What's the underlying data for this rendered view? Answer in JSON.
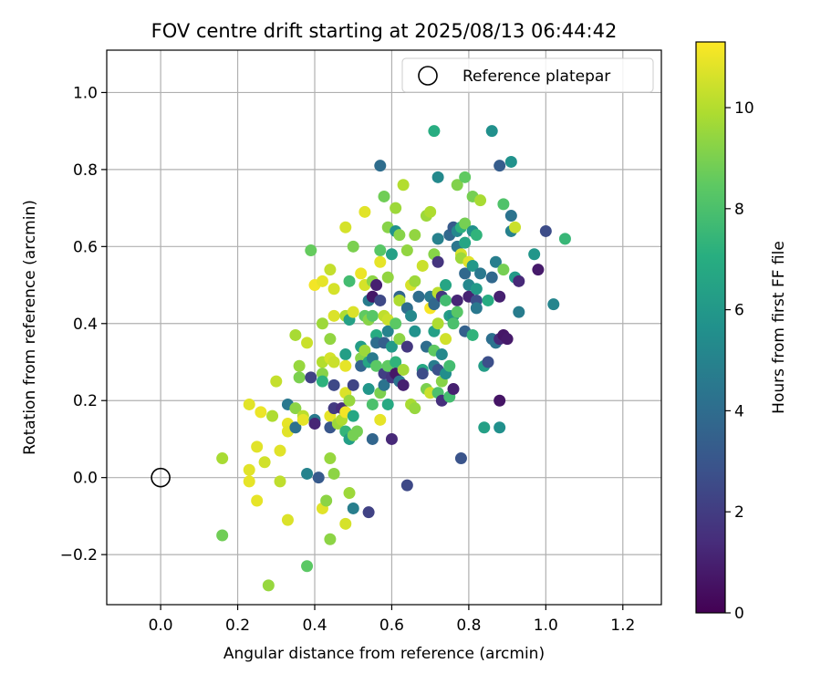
{
  "chart_data": {
    "type": "scatter",
    "title": "FOV centre drift starting at 2025/08/13 06:44:42",
    "xlabel": "Angular distance from reference (arcmin)",
    "ylabel": "Rotation from reference (arcmin)",
    "xlim": [
      -0.14,
      1.3
    ],
    "ylim": [
      -0.33,
      1.11
    ],
    "xticks": [
      0.0,
      0.2,
      0.4,
      0.6,
      0.8,
      1.0,
      1.2
    ],
    "xtick_labels": [
      "0.0",
      "0.2",
      "0.4",
      "0.6",
      "0.8",
      "1.0",
      "1.2"
    ],
    "yticks": [
      -0.2,
      0.0,
      0.2,
      0.4,
      0.6,
      0.8,
      1.0
    ],
    "ytick_labels": [
      "−0.2",
      "0.0",
      "0.2",
      "0.4",
      "0.6",
      "0.8",
      "1.0"
    ],
    "grid": true,
    "legend": {
      "position": "top-right",
      "entries": [
        "Reference platepar"
      ]
    },
    "reference_point": {
      "x": 0.0,
      "y": 0.0,
      "label": "Reference platepar"
    },
    "colorbar": {
      "label": "Hours from first FF file",
      "colormap": "viridis",
      "range": [
        0,
        11.3
      ],
      "ticks": [
        0,
        2,
        4,
        6,
        8,
        10
      ],
      "tick_labels": [
        "0",
        "2",
        "4",
        "6",
        "8",
        "10"
      ]
    },
    "points": [
      [
        0.16,
        0.05,
        9.8
      ],
      [
        0.16,
        -0.15,
        8.8
      ],
      [
        0.23,
        0.19,
        10.8
      ],
      [
        0.23,
        0.02,
        10.8
      ],
      [
        0.23,
        -0.01,
        10.9
      ],
      [
        0.25,
        0.08,
        10.8
      ],
      [
        0.25,
        -0.06,
        10.9
      ],
      [
        0.26,
        0.17,
        11.0
      ],
      [
        0.27,
        0.04,
        10.5
      ],
      [
        0.28,
        -0.28,
        9.5
      ],
      [
        0.29,
        0.16,
        9.9
      ],
      [
        0.3,
        0.25,
        10.3
      ],
      [
        0.31,
        0.07,
        10.8
      ],
      [
        0.31,
        -0.01,
        10.2
      ],
      [
        0.33,
        0.19,
        4.5
      ],
      [
        0.33,
        0.14,
        10.9
      ],
      [
        0.33,
        0.12,
        10.8
      ],
      [
        0.33,
        -0.11,
        10.7
      ],
      [
        0.35,
        0.37,
        9.8
      ],
      [
        0.35,
        0.18,
        9.3
      ],
      [
        0.35,
        0.13,
        4.2
      ],
      [
        0.36,
        0.29,
        9.5
      ],
      [
        0.36,
        0.26,
        9.0
      ],
      [
        0.37,
        0.16,
        10.1
      ],
      [
        0.37,
        0.15,
        10.9
      ],
      [
        0.38,
        0.35,
        10.4
      ],
      [
        0.38,
        0.01,
        5.0
      ],
      [
        0.38,
        -0.23,
        8.4
      ],
      [
        0.39,
        0.59,
        8.6
      ],
      [
        0.39,
        0.26,
        2.2
      ],
      [
        0.4,
        0.5,
        11.1
      ],
      [
        0.4,
        0.15,
        4.6
      ],
      [
        0.4,
        0.14,
        1.2
      ],
      [
        0.41,
        0.0,
        3.2
      ],
      [
        0.42,
        0.51,
        10.9
      ],
      [
        0.42,
        0.4,
        9.6
      ],
      [
        0.42,
        0.3,
        10.0
      ],
      [
        0.42,
        0.27,
        9.2
      ],
      [
        0.42,
        0.25,
        7.2
      ],
      [
        0.42,
        -0.08,
        10.8
      ],
      [
        0.43,
        -0.06,
        9.3
      ],
      [
        0.44,
        0.54,
        10.3
      ],
      [
        0.44,
        0.36,
        9.4
      ],
      [
        0.44,
        0.31,
        10.6
      ],
      [
        0.44,
        0.16,
        10.9
      ],
      [
        0.44,
        0.13,
        3.0
      ],
      [
        0.44,
        0.05,
        9.5
      ],
      [
        0.44,
        -0.16,
        9.3
      ],
      [
        0.45,
        0.49,
        10.6
      ],
      [
        0.45,
        0.42,
        10.7
      ],
      [
        0.45,
        0.3,
        10.4
      ],
      [
        0.45,
        0.24,
        2.5
      ],
      [
        0.45,
        0.18,
        1.9
      ],
      [
        0.45,
        0.01,
        9.3
      ],
      [
        0.46,
        0.14,
        9.6
      ],
      [
        0.47,
        0.18,
        1.4
      ],
      [
        0.47,
        0.15,
        9.9
      ],
      [
        0.48,
        0.65,
        10.6
      ],
      [
        0.48,
        0.42,
        9.9
      ],
      [
        0.48,
        0.32,
        6.3
      ],
      [
        0.48,
        0.29,
        10.9
      ],
      [
        0.48,
        0.22,
        10.7
      ],
      [
        0.48,
        0.17,
        11.1
      ],
      [
        0.48,
        0.12,
        7.4
      ],
      [
        0.48,
        -0.12,
        10.6
      ],
      [
        0.49,
        0.51,
        7.8
      ],
      [
        0.49,
        0.41,
        6.4
      ],
      [
        0.49,
        0.2,
        9.5
      ],
      [
        0.49,
        0.1,
        6.3
      ],
      [
        0.49,
        -0.04,
        9.6
      ],
      [
        0.5,
        0.6,
        9.0
      ],
      [
        0.5,
        0.43,
        10.7
      ],
      [
        0.5,
        0.24,
        2.3
      ],
      [
        0.5,
        0.16,
        6.7
      ],
      [
        0.5,
        0.11,
        8.9
      ],
      [
        0.5,
        -0.08,
        4.8
      ],
      [
        0.51,
        0.12,
        8.9
      ],
      [
        0.52,
        0.53,
        11.0
      ],
      [
        0.52,
        0.34,
        6.2
      ],
      [
        0.52,
        0.31,
        9.2
      ],
      [
        0.52,
        0.29,
        3.6
      ],
      [
        0.53,
        0.69,
        10.8
      ],
      [
        0.53,
        0.5,
        10.6
      ],
      [
        0.53,
        0.42,
        8.5
      ],
      [
        0.53,
        0.33,
        9.6
      ],
      [
        0.54,
        0.46,
        4.7
      ],
      [
        0.54,
        0.41,
        9.2
      ],
      [
        0.54,
        0.3,
        6.6
      ],
      [
        0.54,
        0.23,
        5.9
      ],
      [
        0.54,
        -0.09,
        2.2
      ],
      [
        0.55,
        0.51,
        9.3
      ],
      [
        0.55,
        0.47,
        0.7
      ],
      [
        0.55,
        0.42,
        8.3
      ],
      [
        0.55,
        0.31,
        4.6
      ],
      [
        0.55,
        0.19,
        8.0
      ],
      [
        0.55,
        0.1,
        3.7
      ],
      [
        0.56,
        0.5,
        1.0
      ],
      [
        0.56,
        0.37,
        6.9
      ],
      [
        0.56,
        0.35,
        4.0
      ],
      [
        0.56,
        0.29,
        8.4
      ],
      [
        0.57,
        0.81,
        4.0
      ],
      [
        0.57,
        0.59,
        8.3
      ],
      [
        0.57,
        0.56,
        10.9
      ],
      [
        0.57,
        0.46,
        2.5
      ],
      [
        0.57,
        0.22,
        9.0
      ],
      [
        0.57,
        0.15,
        10.9
      ],
      [
        0.58,
        0.73,
        8.8
      ],
      [
        0.58,
        0.42,
        10.2
      ],
      [
        0.58,
        0.35,
        3.4
      ],
      [
        0.58,
        0.27,
        2.1
      ],
      [
        0.58,
        0.24,
        4.3
      ],
      [
        0.59,
        0.65,
        9.2
      ],
      [
        0.59,
        0.52,
        9.4
      ],
      [
        0.59,
        0.41,
        10.4
      ],
      [
        0.59,
        0.38,
        5.0
      ],
      [
        0.59,
        0.29,
        8.5
      ],
      [
        0.59,
        0.19,
        6.8
      ],
      [
        0.6,
        0.58,
        6.4
      ],
      [
        0.6,
        0.34,
        6.1
      ],
      [
        0.6,
        0.26,
        1.8
      ],
      [
        0.6,
        0.1,
        1.3
      ],
      [
        0.61,
        0.7,
        9.6
      ],
      [
        0.61,
        0.64,
        5.7
      ],
      [
        0.61,
        0.4,
        8.4
      ],
      [
        0.61,
        0.3,
        7.3
      ],
      [
        0.61,
        0.27,
        0.7
      ],
      [
        0.62,
        0.63,
        9.2
      ],
      [
        0.62,
        0.47,
        3.7
      ],
      [
        0.62,
        0.46,
        9.9
      ],
      [
        0.62,
        0.36,
        9.3
      ],
      [
        0.62,
        0.25,
        4.4
      ],
      [
        0.63,
        0.76,
        10.0
      ],
      [
        0.63,
        0.28,
        9.7
      ],
      [
        0.63,
        0.24,
        1.0
      ],
      [
        0.64,
        0.59,
        9.4
      ],
      [
        0.64,
        0.44,
        4.0
      ],
      [
        0.64,
        0.34,
        1.8
      ],
      [
        0.64,
        -0.02,
        2.5
      ],
      [
        0.65,
        0.5,
        10.6
      ],
      [
        0.65,
        0.42,
        5.3
      ],
      [
        0.65,
        0.19,
        9.8
      ],
      [
        0.66,
        0.63,
        9.4
      ],
      [
        0.66,
        0.51,
        9.6
      ],
      [
        0.66,
        0.38,
        5.7
      ],
      [
        0.66,
        0.18,
        9.5
      ],
      [
        0.67,
        0.47,
        4.0
      ],
      [
        0.68,
        0.55,
        10.4
      ],
      [
        0.68,
        0.28,
        6.7
      ],
      [
        0.68,
        0.27,
        2.6
      ],
      [
        0.69,
        0.68,
        9.6
      ],
      [
        0.69,
        0.34,
        4.0
      ],
      [
        0.69,
        0.23,
        9.0
      ],
      [
        0.7,
        0.69,
        9.9
      ],
      [
        0.7,
        0.47,
        4.5
      ],
      [
        0.7,
        0.44,
        11.2
      ],
      [
        0.7,
        0.22,
        10.4
      ],
      [
        0.71,
        0.9,
        7.0
      ],
      [
        0.71,
        0.58,
        9.2
      ],
      [
        0.71,
        0.45,
        3.8
      ],
      [
        0.71,
        0.38,
        6.4
      ],
      [
        0.71,
        0.33,
        8.5
      ],
      [
        0.71,
        0.29,
        4.7
      ],
      [
        0.72,
        0.62,
        4.9
      ],
      [
        0.72,
        0.78,
        5.3
      ],
      [
        0.72,
        0.56,
        1.7
      ],
      [
        0.72,
        0.48,
        10.1
      ],
      [
        0.72,
        0.4,
        9.9
      ],
      [
        0.72,
        0.28,
        2.8
      ],
      [
        0.72,
        0.22,
        8.0
      ],
      [
        0.73,
        0.47,
        1.8
      ],
      [
        0.73,
        0.32,
        5.3
      ],
      [
        0.73,
        0.25,
        9.2
      ],
      [
        0.73,
        0.2,
        1.5
      ],
      [
        0.74,
        0.5,
        6.6
      ],
      [
        0.74,
        0.46,
        7.8
      ],
      [
        0.74,
        0.36,
        10.5
      ],
      [
        0.74,
        0.27,
        5.5
      ],
      [
        0.75,
        0.63,
        3.8
      ],
      [
        0.75,
        0.42,
        6.3
      ],
      [
        0.75,
        0.29,
        7.8
      ],
      [
        0.75,
        0.21,
        7.8
      ],
      [
        0.76,
        0.65,
        3.2
      ],
      [
        0.76,
        0.42,
        5.8
      ],
      [
        0.76,
        0.4,
        8.0
      ],
      [
        0.76,
        0.23,
        1.0
      ],
      [
        0.77,
        0.76,
        9.1
      ],
      [
        0.77,
        0.64,
        5.2
      ],
      [
        0.77,
        0.6,
        4.4
      ],
      [
        0.77,
        0.46,
        1.2
      ],
      [
        0.77,
        0.43,
        8.3
      ],
      [
        0.78,
        0.65,
        7.2
      ],
      [
        0.78,
        0.58,
        10.6
      ],
      [
        0.78,
        0.57,
        9.6
      ],
      [
        0.78,
        0.05,
        2.9
      ],
      [
        0.79,
        0.78,
        8.5
      ],
      [
        0.79,
        0.66,
        8.9
      ],
      [
        0.79,
        0.61,
        6.6
      ],
      [
        0.79,
        0.53,
        3.8
      ],
      [
        0.79,
        0.38,
        3.5
      ],
      [
        0.8,
        0.56,
        10.8
      ],
      [
        0.8,
        0.5,
        5.2
      ],
      [
        0.8,
        0.47,
        1.1
      ],
      [
        0.81,
        0.73,
        8.9
      ],
      [
        0.81,
        0.64,
        5.6
      ],
      [
        0.81,
        0.55,
        6.0
      ],
      [
        0.81,
        0.37,
        7.3
      ],
      [
        0.82,
        0.63,
        7.3
      ],
      [
        0.82,
        0.49,
        6.1
      ],
      [
        0.82,
        0.46,
        2.7
      ],
      [
        0.82,
        0.44,
        4.5
      ],
      [
        0.83,
        0.72,
        9.8
      ],
      [
        0.83,
        0.53,
        4.5
      ],
      [
        0.84,
        0.29,
        6.2
      ],
      [
        0.84,
        0.13,
        6.4
      ],
      [
        0.85,
        0.3,
        2.7
      ],
      [
        0.85,
        0.46,
        6.9
      ],
      [
        0.86,
        0.9,
        5.6
      ],
      [
        0.86,
        0.52,
        3.8
      ],
      [
        0.86,
        0.36,
        4.1
      ],
      [
        0.87,
        0.56,
        4.8
      ],
      [
        0.87,
        0.35,
        4.3
      ],
      [
        0.88,
        0.81,
        3.3
      ],
      [
        0.88,
        0.47,
        1.0
      ],
      [
        0.88,
        0.36,
        1.3
      ],
      [
        0.88,
        0.2,
        0.6
      ],
      [
        0.88,
        0.13,
        5.6
      ],
      [
        0.89,
        0.71,
        8.1
      ],
      [
        0.89,
        0.54,
        8.9
      ],
      [
        0.89,
        0.37,
        0.7
      ],
      [
        0.9,
        0.36,
        0.8
      ],
      [
        0.91,
        0.82,
        5.7
      ],
      [
        0.91,
        0.68,
        4.3
      ],
      [
        0.91,
        0.64,
        4.9
      ],
      [
        0.92,
        0.65,
        10.4
      ],
      [
        0.92,
        0.52,
        6.1
      ],
      [
        0.93,
        0.51,
        1.3
      ],
      [
        0.93,
        0.43,
        4.7
      ],
      [
        0.97,
        0.58,
        5.9
      ],
      [
        0.98,
        0.54,
        0.8
      ],
      [
        1.0,
        0.64,
        2.6
      ],
      [
        1.02,
        0.45,
        5.1
      ],
      [
        1.05,
        0.62,
        7.5
      ]
    ]
  }
}
